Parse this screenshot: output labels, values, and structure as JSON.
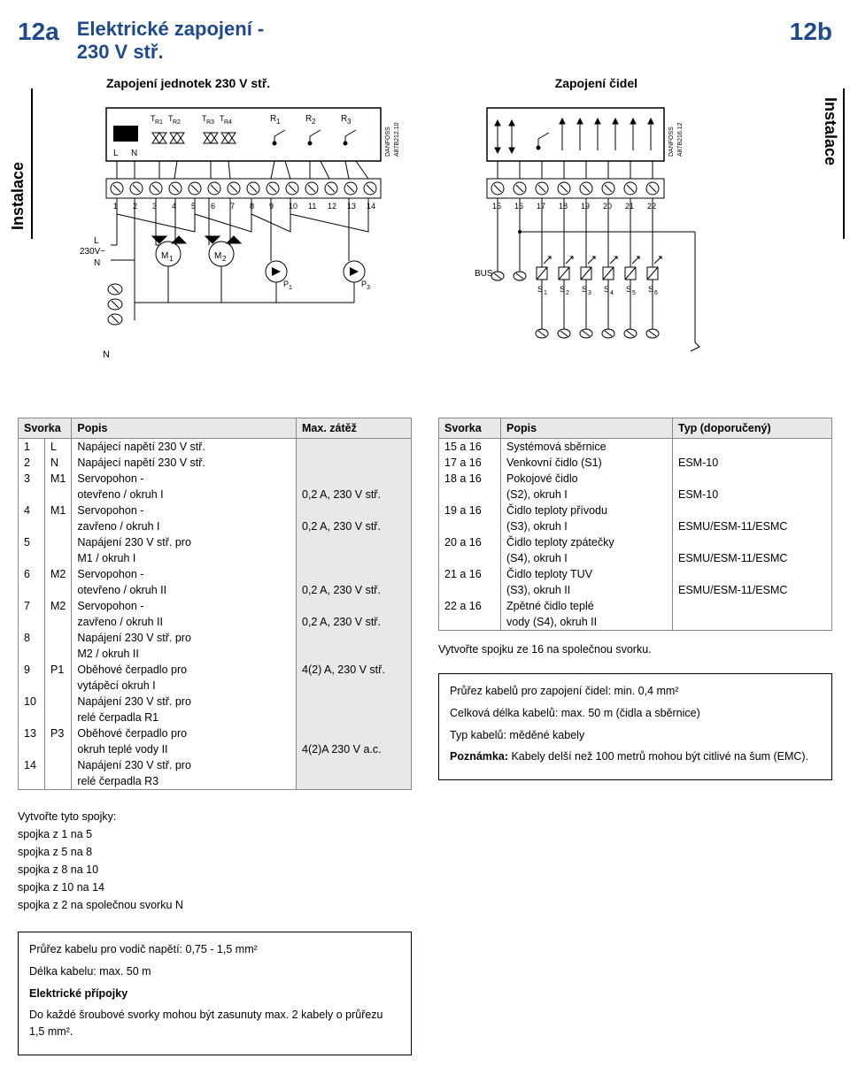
{
  "header": {
    "numLeft": "12a",
    "numRight": "12b",
    "title1": "Elektrické zapojení -",
    "title2": "230 V stř.",
    "subLeft": "Zapojení jednotek 230 V stř.",
    "subRight": "Zapojení čidel",
    "sideLeft": "Instalace",
    "sideRight": "Instalace"
  },
  "diagrams": {
    "left": {
      "danfoss": "DANFOSS\nA87B212.10",
      "topLabels": [
        "TR1",
        "TR2",
        "TR3",
        "TR4",
        "R1",
        "R2",
        "R3"
      ],
      "terminals": [
        "1",
        "2",
        "3",
        "4",
        "5",
        "6",
        "7",
        "8",
        "9",
        "10",
        "11",
        "12",
        "13",
        "14"
      ],
      "voltage": "230V~",
      "L": "L",
      "N": "N",
      "motors": [
        "M1",
        "M2"
      ],
      "pumps": [
        "P1",
        "P3"
      ]
    },
    "right": {
      "danfoss": "DANFOSS\nA87B216.12",
      "terminals": [
        "15",
        "16",
        "17",
        "18",
        "19",
        "20",
        "21",
        "22"
      ],
      "bus": "BUS",
      "sensors": [
        "S1",
        "S2",
        "S3",
        "S4",
        "S5",
        "S6"
      ]
    }
  },
  "tableLeft": {
    "headers": [
      "Svorka",
      "",
      "Popis",
      "Max. zátěž"
    ],
    "rows": [
      [
        "1",
        "L",
        "Napájecí napětí 230 V stř.",
        ""
      ],
      [
        "2",
        "N",
        "Napájecí napětí 230 V stř.",
        ""
      ],
      [
        "3",
        "M1",
        "Servopohon -",
        ""
      ],
      [
        "",
        "",
        "otevřeno / okruh I",
        "0,2 A, 230 V stř."
      ],
      [
        "4",
        "M1",
        "Servopohon -",
        ""
      ],
      [
        "",
        "",
        "zavřeno / okruh I",
        "0,2 A, 230 V stř."
      ],
      [
        "5",
        "",
        "Napájení 230 V stř. pro",
        ""
      ],
      [
        "",
        "",
        "M1 / okruh I",
        ""
      ],
      [
        "6",
        "M2",
        "Servopohon -",
        ""
      ],
      [
        "",
        "",
        "otevřeno / okruh II",
        "0,2 A, 230 V stř."
      ],
      [
        "7",
        "M2",
        "Servopohon -",
        ""
      ],
      [
        "",
        "",
        "zavřeno / okruh II",
        "0,2 A, 230 V stř."
      ],
      [
        "8",
        "",
        "Napájení 230 V stř. pro",
        ""
      ],
      [
        "",
        "",
        "M2 / okruh II",
        ""
      ],
      [
        "9",
        "P1",
        "Oběhové čerpadlo pro",
        "4(2) A, 230 V stř."
      ],
      [
        "",
        "",
        "vytápěcí okruh I",
        ""
      ],
      [
        "10",
        "",
        "Napájení 230 V stř. pro",
        ""
      ],
      [
        "",
        "",
        "relé čerpadla R1",
        ""
      ],
      [
        "13",
        "P3",
        "Oběhové čerpadlo pro",
        ""
      ],
      [
        "",
        "",
        "okruh teplé vody II",
        "4(2)A 230 V a.c."
      ],
      [
        "14",
        "",
        "Napájení 230 V stř. pro",
        ""
      ],
      [
        "",
        "",
        "relé čerpadla R3",
        ""
      ]
    ]
  },
  "tableRight": {
    "headers": [
      "Svorka",
      "Popis",
      "Typ (doporučený)"
    ],
    "rows": [
      [
        "15 a 16",
        "Systémová sběrnice",
        ""
      ],
      [
        "17 a 16",
        "Venkovní čidlo (S1)",
        "ESM-10"
      ],
      [
        "18 a 16",
        "Pokojové čidlo",
        ""
      ],
      [
        "",
        "(S2), okruh I",
        "ESM-10"
      ],
      [
        "19 a 16",
        "Čidlo teploty přívodu",
        ""
      ],
      [
        "",
        "(S3), okruh I",
        "ESMU/ESM-11/ESMC"
      ],
      [
        "20 a 16",
        "Čidlo teploty zpátečky",
        ""
      ],
      [
        "",
        "(S4), okruh I",
        "ESMU/ESM-11/ESMC"
      ],
      [
        "21 a 16",
        "Čidlo teploty TUV",
        ""
      ],
      [
        "",
        "(S3), okruh II",
        "ESMU/ESM-11/ESMC"
      ],
      [
        "22 a 16",
        "Zpětné čidlo teplé",
        ""
      ],
      [
        "",
        "vody (S4), okruh II",
        ""
      ]
    ]
  },
  "jumpersLeft": {
    "title": "Vytvořte tyto spojky:",
    "lines": [
      "spojka z 1 na 5",
      "spojka z 5 na 8",
      "spojka z 8 na 10",
      "spojka z 10 na 14",
      "spojka z 2 na společnou svorku N"
    ]
  },
  "rightNote": "Vytvořte spojku ze 16 na společnou svorku.",
  "rightBox": {
    "l1": "Průřez kabelů pro zapojení čidel: min. 0,4 mm²",
    "l2": "Celková délka kabelů: max. 50 m (čidla a sběrnice)",
    "l3": "Typ kabelů: měděné kabely",
    "l4a": "Poznámka:",
    "l4b": " Kabely delší než 100 metrů mohou být citlivé na šum (EMC)."
  },
  "leftBox": {
    "l1": "Průřez kabelu pro vodič napětí: 0,75 - 1,5 mm²",
    "l2": "Délka kabelu: max. 50 m",
    "l3": "Elektrické přípojky",
    "l4": "Do každé šroubové svorky mohou být zasunuty max. 2 kabely o průřezu 1,5 mm²."
  }
}
